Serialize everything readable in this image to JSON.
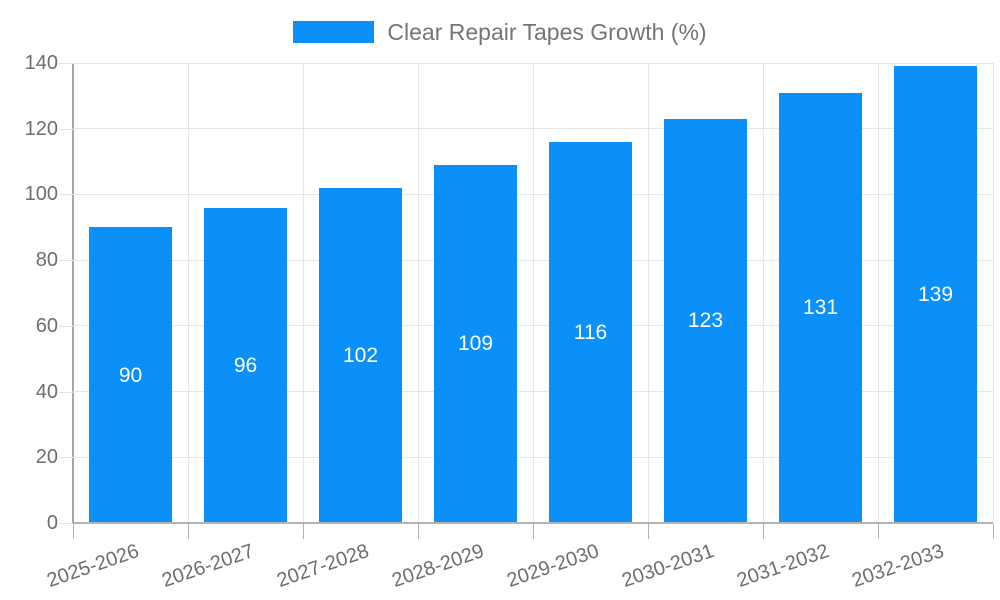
{
  "legend": {
    "label": "Clear Repair Tapes Growth (%)"
  },
  "chart_data": {
    "type": "bar",
    "title": "Clear Repair Tapes Growth (%)",
    "categories": [
      "2025-2026",
      "2026-2027",
      "2027-2028",
      "2028-2029",
      "2029-2030",
      "2030-2031",
      "2031-2032",
      "2032-2033"
    ],
    "values": [
      90,
      96,
      102,
      109,
      116,
      123,
      131,
      139
    ],
    "xlabel": "",
    "ylabel": "",
    "ylim": [
      0,
      140
    ],
    "yticks": [
      0,
      20,
      40,
      60,
      80,
      100,
      120,
      140
    ],
    "grid": true,
    "legend_position": "top-center",
    "colors": {
      "bar": "#0a90f8",
      "value_label": "#ffffff",
      "grid": "#e6e6e6",
      "y_axis": "#a6a6a6",
      "x_axis": "#b3b3b3",
      "tick_mark_y": "#e3e3e3",
      "tick_mark_x": "#b3b3b3",
      "tick_label": "#6e6e6e",
      "legend_text": "#757575",
      "background": "#ffffff"
    }
  }
}
